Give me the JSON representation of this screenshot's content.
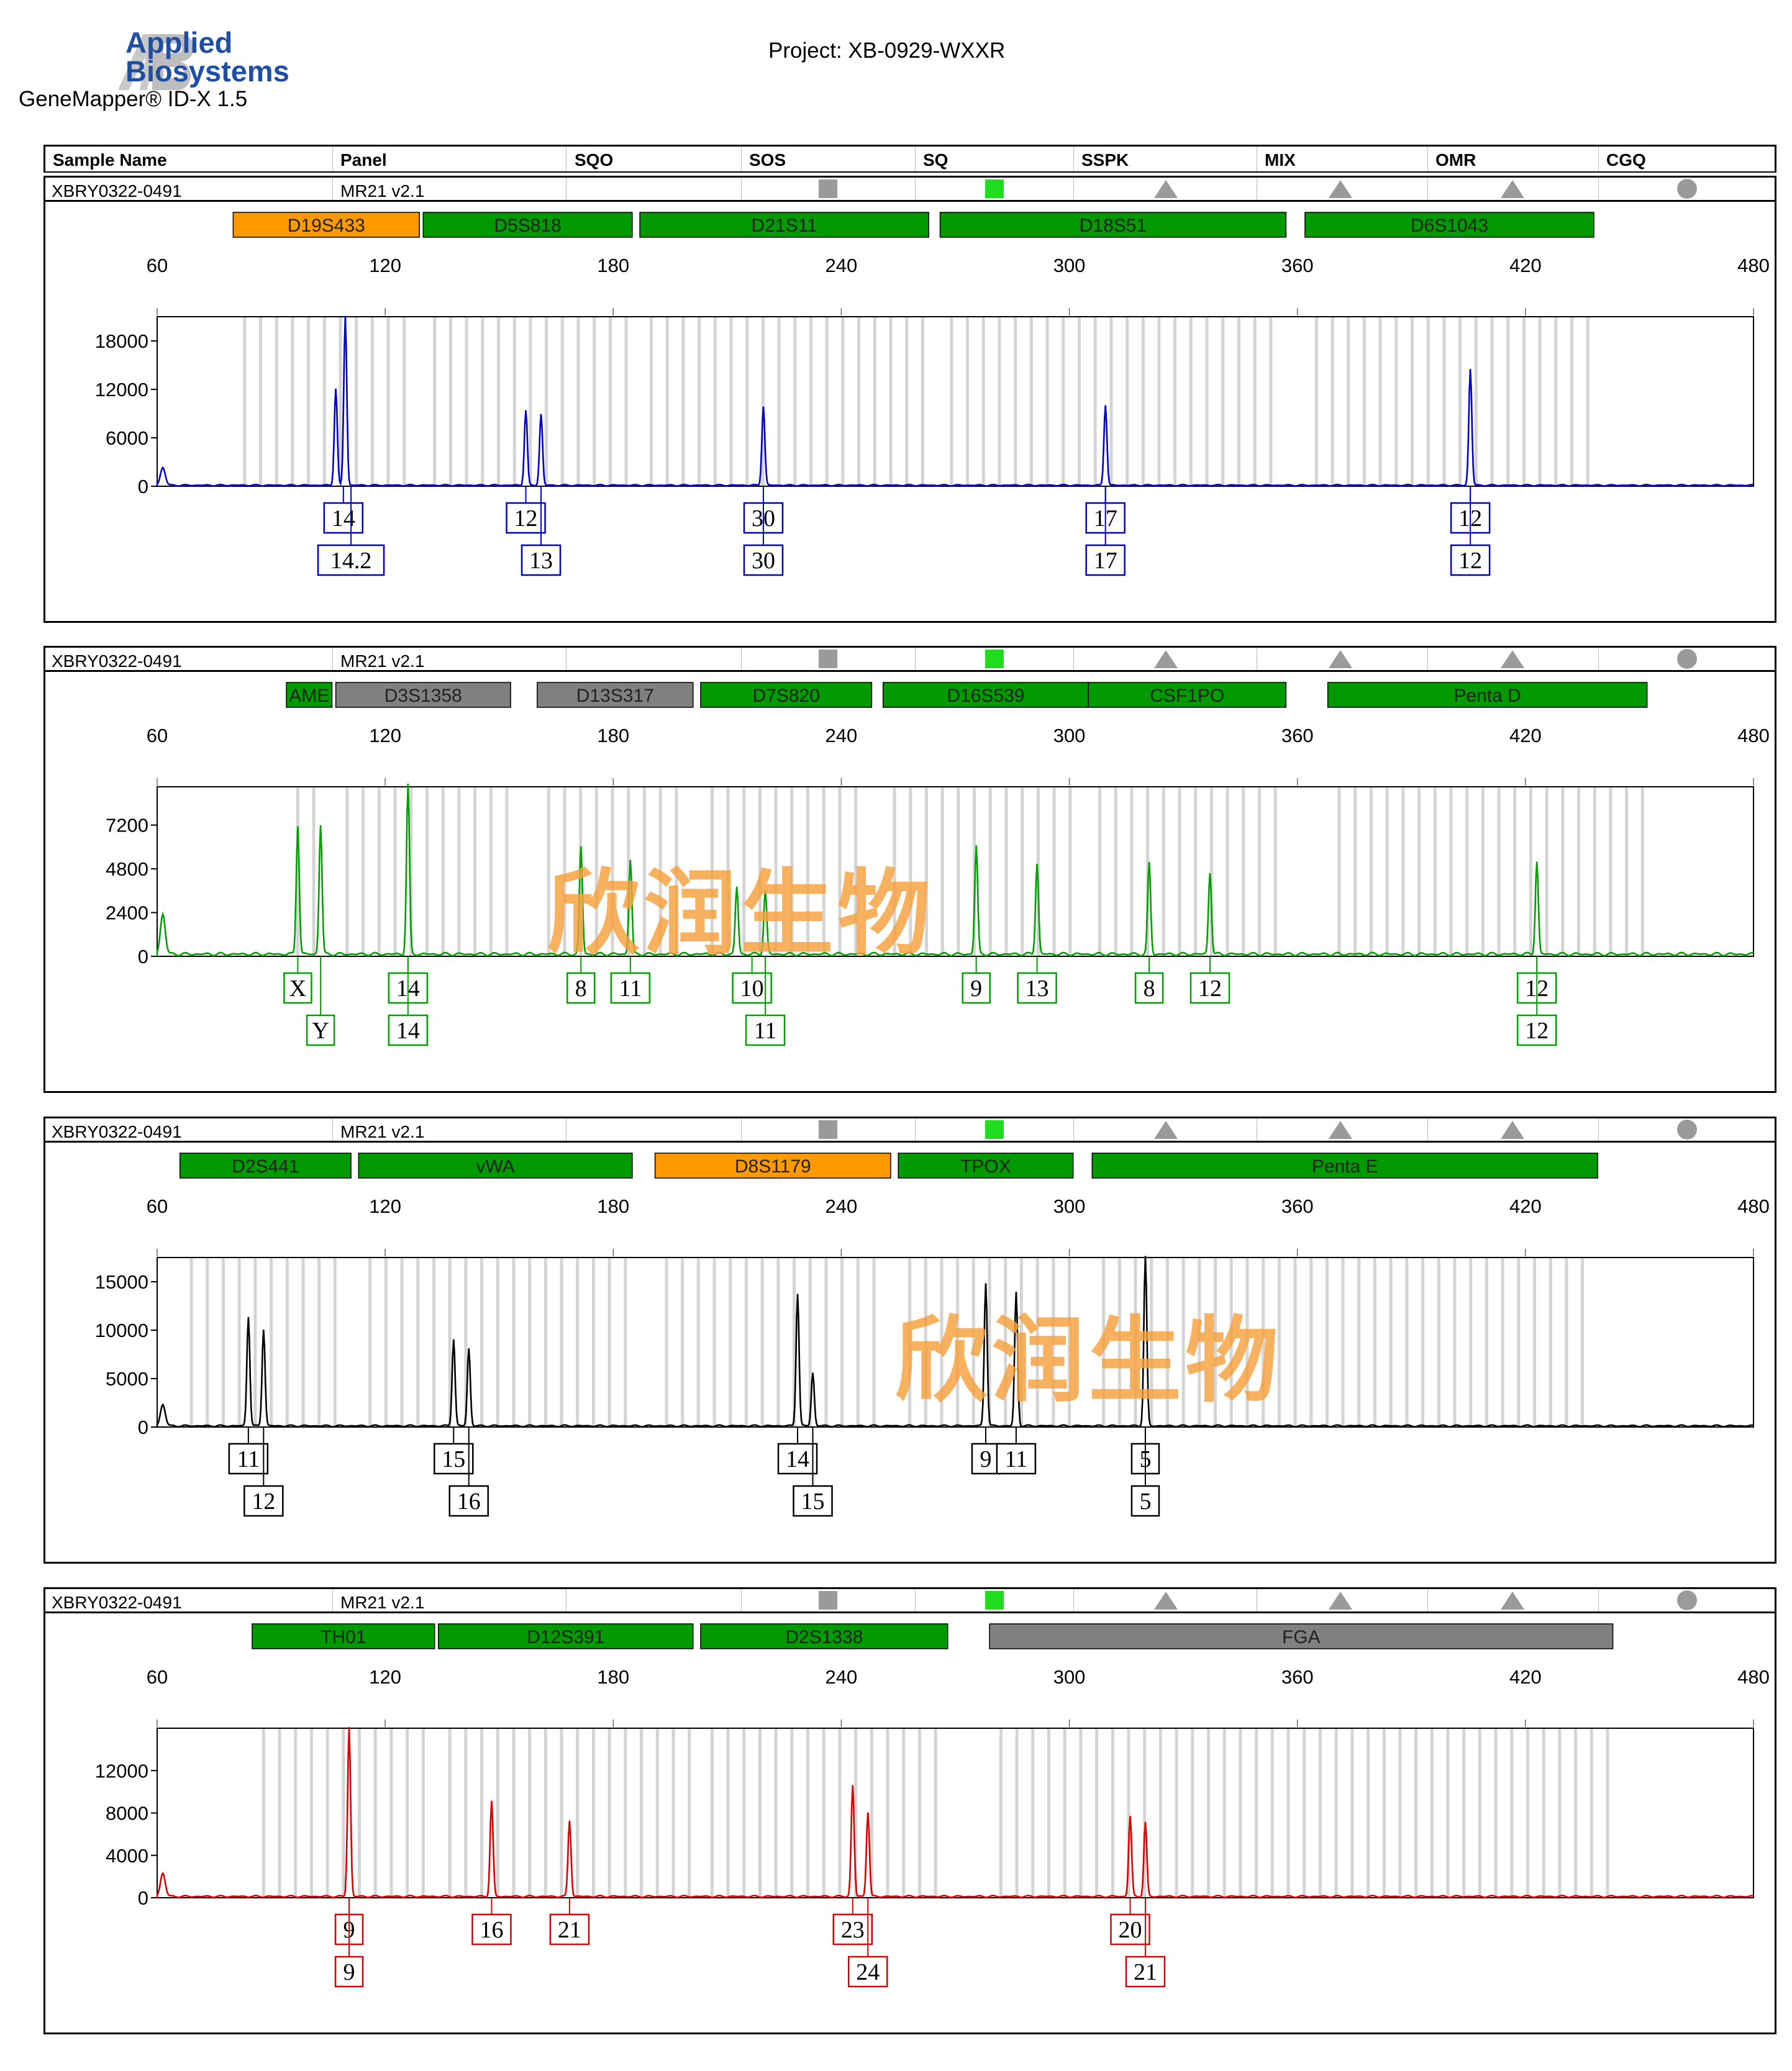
{
  "app": {
    "vendor_line1": "Applied",
    "vendor_line2": "Biosystems",
    "software": "GeneMapper® ID-X  1.5"
  },
  "project": "Project: XB-0929-WXXR",
  "columns": [
    "Sample Name",
    "Panel",
    "SQO",
    "SOS",
    "SQ",
    "SSPK",
    "MIX",
    "OMR",
    "CGQ"
  ],
  "colors": {
    "blue": "#0000cc",
    "green": "#00a000",
    "black": "#000000",
    "red": "#dd0000",
    "locus_green": "#009900",
    "locus_orange": "#ff9900",
    "locus_gray": "#808080",
    "watermark": "#f7a03c"
  },
  "watermark_text": "欣润生物",
  "chart_data": [
    {
      "type": "line",
      "dye": "blue",
      "sample": "XBRY0322-0491",
      "panel": "MR21  v2.1",
      "flags": [
        "gray-square",
        "green-square",
        "gray-triangle",
        "gray-triangle",
        "gray-triangle",
        "gray-circle"
      ],
      "xlim": [
        60,
        480
      ],
      "xticks": [
        60,
        120,
        180,
        240,
        300,
        360,
        420,
        480
      ],
      "ylim": [
        0,
        21000
      ],
      "yticks": [
        0,
        6000,
        12000,
        18000
      ],
      "loci": [
        {
          "name": "D19S433",
          "start": 80,
          "end": 129,
          "color": "orange"
        },
        {
          "name": "D5S818",
          "start": 130,
          "end": 185,
          "color": "green"
        },
        {
          "name": "D21S11",
          "start": 187,
          "end": 263,
          "color": "green"
        },
        {
          "name": "D18S51",
          "start": 266,
          "end": 357,
          "color": "green"
        },
        {
          "name": "D6S1043",
          "start": 362,
          "end": 438,
          "color": "green"
        }
      ],
      "peaks": [
        {
          "x": 107,
          "y": 12000
        },
        {
          "x": 109.5,
          "y": 21000
        },
        {
          "x": 157,
          "y": 9300
        },
        {
          "x": 161,
          "y": 8800
        },
        {
          "x": 219.5,
          "y": 9800
        },
        {
          "x": 309.5,
          "y": 10000
        },
        {
          "x": 405.5,
          "y": 14400
        }
      ],
      "alleles": [
        {
          "x": 109,
          "row": 1,
          "label": "14"
        },
        {
          "x": 111,
          "row": 2,
          "label": "14.2"
        },
        {
          "x": 157,
          "row": 1,
          "label": "12"
        },
        {
          "x": 161,
          "row": 2,
          "label": "13"
        },
        {
          "x": 219.5,
          "row": 1,
          "label": "30"
        },
        {
          "x": 219.5,
          "row": 2,
          "label": "30"
        },
        {
          "x": 309.5,
          "row": 1,
          "label": "17"
        },
        {
          "x": 309.5,
          "row": 2,
          "label": "17"
        },
        {
          "x": 405.5,
          "row": 1,
          "label": "12"
        },
        {
          "x": 405.5,
          "row": 2,
          "label": "12"
        }
      ]
    },
    {
      "type": "line",
      "dye": "green",
      "sample": "XBRY0322-0491",
      "panel": "MR21  v2.1",
      "flags": [
        "gray-square",
        "green-square",
        "gray-triangle",
        "gray-triangle",
        "gray-triangle",
        "gray-circle"
      ],
      "xlim": [
        60,
        480
      ],
      "xticks": [
        60,
        120,
        180,
        240,
        300,
        360,
        420,
        480
      ],
      "ylim": [
        0,
        9300
      ],
      "yticks": [
        0,
        2400,
        4800,
        7200
      ],
      "loci": [
        {
          "name": "AME",
          "start": 94,
          "end": 106,
          "color": "green"
        },
        {
          "name": "D3S1358",
          "start": 107,
          "end": 153,
          "color": "gray"
        },
        {
          "name": "D13S317",
          "start": 160,
          "end": 201,
          "color": "gray"
        },
        {
          "name": "D7S820",
          "start": 203,
          "end": 248,
          "color": "green"
        },
        {
          "name": "D16S539",
          "start": 251,
          "end": 305,
          "color": "green"
        },
        {
          "name": "CSF1PO",
          "start": 305,
          "end": 357,
          "color": "green"
        },
        {
          "name": "Penta D",
          "start": 368,
          "end": 452,
          "color": "green"
        }
      ],
      "peaks": [
        {
          "x": 97,
          "y": 7100
        },
        {
          "x": 103,
          "y": 7100
        },
        {
          "x": 126,
          "y": 9300
        },
        {
          "x": 171.5,
          "y": 5900
        },
        {
          "x": 184.5,
          "y": 5200
        },
        {
          "x": 212.5,
          "y": 3700
        },
        {
          "x": 220,
          "y": 3500
        },
        {
          "x": 275.5,
          "y": 5950
        },
        {
          "x": 291.5,
          "y": 5000
        },
        {
          "x": 321,
          "y": 5000
        },
        {
          "x": 337,
          "y": 4500
        },
        {
          "x": 423,
          "y": 5100
        }
      ],
      "alleles": [
        {
          "x": 97,
          "row": 1,
          "label": "X"
        },
        {
          "x": 103,
          "row": 2,
          "label": "Y"
        },
        {
          "x": 126,
          "row": 1,
          "label": "14"
        },
        {
          "x": 126,
          "row": 2,
          "label": "14"
        },
        {
          "x": 171.5,
          "row": 1,
          "label": "8"
        },
        {
          "x": 184.5,
          "row": 1,
          "label": "11"
        },
        {
          "x": 216.5,
          "row": 1,
          "label": "10"
        },
        {
          "x": 220,
          "row": 2,
          "label": "11"
        },
        {
          "x": 275.5,
          "row": 1,
          "label": "9"
        },
        {
          "x": 291.5,
          "row": 1,
          "label": "13"
        },
        {
          "x": 321,
          "row": 1,
          "label": "8"
        },
        {
          "x": 337,
          "row": 1,
          "label": "12"
        },
        {
          "x": 423,
          "row": 1,
          "label": "12"
        },
        {
          "x": 423,
          "row": 2,
          "label": "12"
        }
      ]
    },
    {
      "type": "line",
      "dye": "black",
      "sample": "XBRY0322-0491",
      "panel": "MR21  v2.1",
      "flags": [
        "gray-square",
        "green-square",
        "gray-triangle",
        "gray-triangle",
        "gray-triangle",
        "gray-circle"
      ],
      "xlim": [
        60,
        480
      ],
      "xticks": [
        60,
        120,
        180,
        240,
        300,
        360,
        420,
        480
      ],
      "ylim": [
        0,
        17500
      ],
      "yticks": [
        0,
        5000,
        10000,
        15000
      ],
      "loci": [
        {
          "name": "D2S441",
          "start": 66,
          "end": 111,
          "color": "green"
        },
        {
          "name": "vWA",
          "start": 113,
          "end": 185,
          "color": "green"
        },
        {
          "name": "D8S1179",
          "start": 191,
          "end": 253,
          "color": "orange"
        },
        {
          "name": "TPOX",
          "start": 255,
          "end": 301,
          "color": "green"
        },
        {
          "name": "Penta E",
          "start": 306,
          "end": 439,
          "color": "green"
        }
      ],
      "peaks": [
        {
          "x": 84,
          "y": 11300
        },
        {
          "x": 88,
          "y": 10000
        },
        {
          "x": 138,
          "y": 9000
        },
        {
          "x": 142,
          "y": 8000
        },
        {
          "x": 228.5,
          "y": 13700
        },
        {
          "x": 232.5,
          "y": 5500
        },
        {
          "x": 278,
          "y": 14800
        },
        {
          "x": 286,
          "y": 13800
        },
        {
          "x": 320,
          "y": 17500
        }
      ],
      "alleles": [
        {
          "x": 84,
          "row": 1,
          "label": "11"
        },
        {
          "x": 88,
          "row": 2,
          "label": "12"
        },
        {
          "x": 138,
          "row": 1,
          "label": "15"
        },
        {
          "x": 142,
          "row": 2,
          "label": "16"
        },
        {
          "x": 228.5,
          "row": 1,
          "label": "14"
        },
        {
          "x": 232.5,
          "row": 2,
          "label": "15"
        },
        {
          "x": 278,
          "row": 1,
          "label": "9"
        },
        {
          "x": 286,
          "row": 1,
          "label": "11"
        },
        {
          "x": 320,
          "row": 1,
          "label": "5"
        },
        {
          "x": 320,
          "row": 2,
          "label": "5"
        }
      ]
    },
    {
      "type": "line",
      "dye": "red",
      "sample": "XBRY0322-0491",
      "panel": "MR21  v2.1",
      "flags": [
        "gray-square",
        "green-square",
        "gray-triangle",
        "gray-triangle",
        "gray-triangle",
        "gray-circle"
      ],
      "xlim": [
        60,
        480
      ],
      "xticks": [
        60,
        120,
        180,
        240,
        300,
        360,
        420,
        480
      ],
      "ylim": [
        0,
        16000
      ],
      "yticks": [
        0,
        4000,
        8000,
        12000
      ],
      "loci": [
        {
          "name": "TH01",
          "start": 85,
          "end": 133,
          "color": "green"
        },
        {
          "name": "D12S391",
          "start": 134,
          "end": 201,
          "color": "green"
        },
        {
          "name": "D2S1338",
          "start": 203,
          "end": 268,
          "color": "green"
        },
        {
          "name": "FGA",
          "start": 279,
          "end": 443,
          "color": "gray"
        }
      ],
      "peaks": [
        {
          "x": 110.5,
          "y": 16000
        },
        {
          "x": 148,
          "y": 9000
        },
        {
          "x": 168.5,
          "y": 7200
        },
        {
          "x": 243,
          "y": 10500
        },
        {
          "x": 247,
          "y": 8000
        },
        {
          "x": 316,
          "y": 7600
        },
        {
          "x": 320,
          "y": 7000
        }
      ],
      "alleles": [
        {
          "x": 110.5,
          "row": 1,
          "label": "9"
        },
        {
          "x": 110.5,
          "row": 2,
          "label": "9"
        },
        {
          "x": 148,
          "row": 1,
          "label": "16"
        },
        {
          "x": 168.5,
          "row": 1,
          "label": "21"
        },
        {
          "x": 243,
          "row": 1,
          "label": "23"
        },
        {
          "x": 247,
          "row": 2,
          "label": "24"
        },
        {
          "x": 316,
          "row": 1,
          "label": "20"
        },
        {
          "x": 320,
          "row": 2,
          "label": "21"
        }
      ]
    }
  ]
}
